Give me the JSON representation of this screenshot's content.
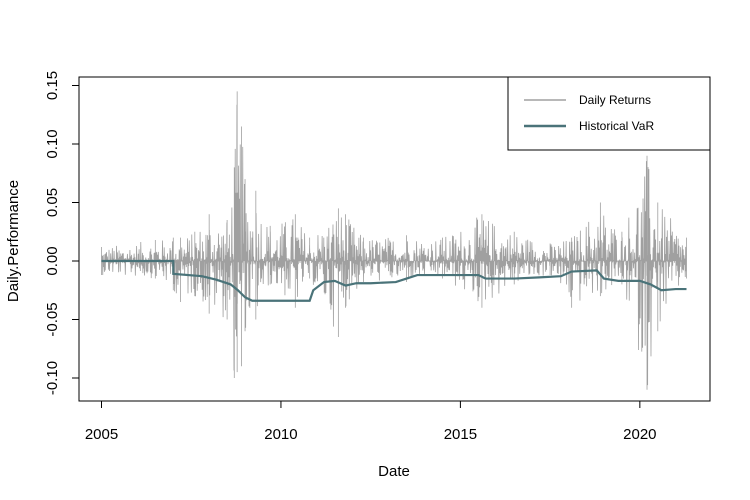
{
  "chart_data": {
    "type": "line",
    "xlabel": "Date",
    "ylabel": "Daily.Performance",
    "xlim": [
      2005.0,
      2021.4
    ],
    "ylim": [
      -0.12,
      0.155
    ],
    "x_ticks": [
      2005,
      2010,
      2015,
      2020
    ],
    "x_tick_labels": [
      "2005",
      "2010",
      "2015",
      "2020"
    ],
    "y_ticks": [
      -0.1,
      -0.05,
      0.0,
      0.05,
      0.1,
      0.15
    ],
    "y_tick_labels": [
      "-0.10",
      "-0.05",
      "0.00",
      "0.05",
      "0.10",
      "0.15"
    ],
    "legend_position": "top-right",
    "grid": false,
    "series": [
      {
        "name": "Daily Returns",
        "color": "#a0a0a0",
        "x_range": [
          2005.0,
          2021.3
        ],
        "envelope": [
          {
            "x": 2005.0,
            "lo": -0.012,
            "hi": 0.012
          },
          {
            "x": 2006.5,
            "lo": -0.015,
            "hi": 0.018
          },
          {
            "x": 2007.0,
            "lo": -0.025,
            "hi": 0.02
          },
          {
            "x": 2007.2,
            "lo": -0.035,
            "hi": 0.02
          },
          {
            "x": 2007.6,
            "lo": -0.03,
            "hi": 0.025
          },
          {
            "x": 2008.0,
            "lo": -0.045,
            "hi": 0.04
          },
          {
            "x": 2008.5,
            "lo": -0.05,
            "hi": 0.035
          },
          {
            "x": 2008.7,
            "lo": -0.1,
            "hi": 0.08
          },
          {
            "x": 2008.78,
            "lo": -0.095,
            "hi": 0.145
          },
          {
            "x": 2008.9,
            "lo": -0.09,
            "hi": 0.115
          },
          {
            "x": 2009.0,
            "lo": -0.06,
            "hi": 0.07
          },
          {
            "x": 2009.3,
            "lo": -0.05,
            "hi": 0.06
          },
          {
            "x": 2009.7,
            "lo": -0.02,
            "hi": 0.03
          },
          {
            "x": 2010.4,
            "lo": -0.04,
            "hi": 0.04
          },
          {
            "x": 2010.8,
            "lo": -0.015,
            "hi": 0.02
          },
          {
            "x": 2011.6,
            "lo": -0.065,
            "hi": 0.045
          },
          {
            "x": 2011.8,
            "lo": -0.04,
            "hi": 0.04
          },
          {
            "x": 2012.3,
            "lo": -0.018,
            "hi": 0.02
          },
          {
            "x": 2013.5,
            "lo": -0.018,
            "hi": 0.022
          },
          {
            "x": 2014.5,
            "lo": -0.015,
            "hi": 0.02
          },
          {
            "x": 2015.6,
            "lo": -0.04,
            "hi": 0.04
          },
          {
            "x": 2016.5,
            "lo": -0.02,
            "hi": 0.025
          },
          {
            "x": 2017.5,
            "lo": -0.012,
            "hi": 0.015
          },
          {
            "x": 2018.1,
            "lo": -0.04,
            "hi": 0.02
          },
          {
            "x": 2018.9,
            "lo": -0.03,
            "hi": 0.05
          },
          {
            "x": 2019.5,
            "lo": -0.02,
            "hi": 0.025
          },
          {
            "x": 2020.2,
            "lo": -0.11,
            "hi": 0.09
          },
          {
            "x": 2020.5,
            "lo": -0.06,
            "hi": 0.05
          },
          {
            "x": 2021.3,
            "lo": -0.015,
            "hi": 0.02
          }
        ]
      },
      {
        "name": "Historical VaR",
        "color": "#4a7379",
        "points": [
          [
            2005.0,
            0.0
          ],
          [
            2007.0,
            0.0
          ],
          [
            2007.0,
            -0.011
          ],
          [
            2007.8,
            -0.013
          ],
          [
            2008.2,
            -0.016
          ],
          [
            2008.6,
            -0.02
          ],
          [
            2008.8,
            -0.025
          ],
          [
            2009.0,
            -0.031
          ],
          [
            2009.2,
            -0.034
          ],
          [
            2010.8,
            -0.034
          ],
          [
            2010.9,
            -0.025
          ],
          [
            2011.2,
            -0.018
          ],
          [
            2011.5,
            -0.017
          ],
          [
            2011.8,
            -0.021
          ],
          [
            2012.1,
            -0.019
          ],
          [
            2012.5,
            -0.019
          ],
          [
            2013.2,
            -0.018
          ],
          [
            2013.5,
            -0.015
          ],
          [
            2013.8,
            -0.012
          ],
          [
            2015.5,
            -0.012
          ],
          [
            2015.7,
            -0.015
          ],
          [
            2016.5,
            -0.015
          ],
          [
            2017.2,
            -0.014
          ],
          [
            2017.8,
            -0.013
          ],
          [
            2018.1,
            -0.009
          ],
          [
            2018.8,
            -0.008
          ],
          [
            2019.0,
            -0.015
          ],
          [
            2019.4,
            -0.017
          ],
          [
            2020.0,
            -0.017
          ],
          [
            2020.3,
            -0.02
          ],
          [
            2020.6,
            -0.025
          ],
          [
            2021.0,
            -0.024
          ],
          [
            2021.3,
            -0.024
          ]
        ]
      }
    ]
  }
}
